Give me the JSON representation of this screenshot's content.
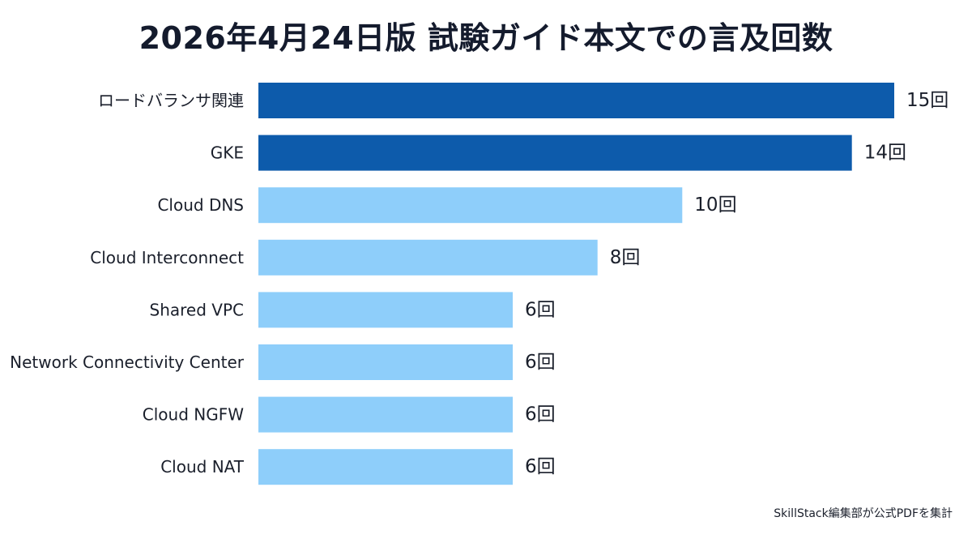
{
  "chart_data": {
    "type": "bar",
    "orientation": "horizontal",
    "title": "2026年4月24日版 試験ガイド本文での言及回数",
    "categories": [
      "ロードバランサ関連",
      "GKE",
      "Cloud DNS",
      "Cloud Interconnect",
      "Shared VPC",
      "Network Connectivity Center",
      "Cloud NGFW",
      "Cloud NAT"
    ],
    "values": [
      15,
      14,
      10,
      8,
      6,
      6,
      6,
      6
    ],
    "value_labels": [
      "15回",
      "14回",
      "10回",
      "8回",
      "6回",
      "6回",
      "6回",
      "6回"
    ],
    "highlighted": [
      true,
      true,
      false,
      false,
      false,
      false,
      false,
      false
    ],
    "colors": {
      "highlight": "#0d5bab",
      "normal": "#8ecefa"
    },
    "xlim": [
      0,
      15
    ],
    "grid": false,
    "legend": "none"
  },
  "footer": {
    "source": "SkillStack編集部が公式PDFを集計"
  }
}
